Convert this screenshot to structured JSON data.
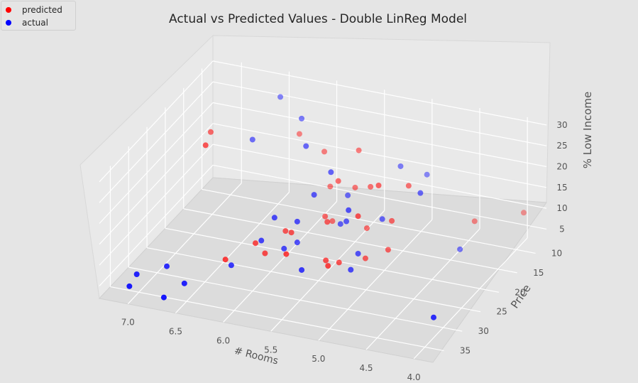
{
  "chart_data": {
    "type": "scatter",
    "title": "Actual vs Predicted Values - Double LinReg Model",
    "xlabel": "# Rooms",
    "ylabel": "Price",
    "zlabel": "% Low Income",
    "x_ticks": [
      "7.0",
      "6.5",
      "6.0",
      "5.5",
      "5.0",
      "4.5",
      "4.0"
    ],
    "y_ticks": [
      "10",
      "15",
      "20",
      "25",
      "30",
      "35"
    ],
    "z_ticks": [
      "5",
      "10",
      "15",
      "20",
      "25",
      "30"
    ],
    "legend": {
      "placement": "top-left"
    },
    "grid": true,
    "projection": "3d",
    "series": [
      {
        "name": "predicted",
        "color": "#ff0000",
        "points": [
          [
            6.8,
            22,
            26
          ],
          [
            6.9,
            18,
            25
          ],
          [
            5.5,
            14,
            23
          ],
          [
            6.2,
            12,
            22
          ],
          [
            5.9,
            13,
            20
          ],
          [
            5.1,
            19,
            21
          ],
          [
            4.9,
            16,
            19
          ],
          [
            5.6,
            17,
            18
          ],
          [
            5.3,
            16,
            17
          ],
          [
            5.2,
            22,
            16
          ],
          [
            5.5,
            15,
            15
          ],
          [
            5.8,
            14,
            13
          ],
          [
            5.0,
            18,
            12
          ],
          [
            5.6,
            20,
            11
          ],
          [
            5.7,
            18,
            10
          ],
          [
            5.9,
            22,
            9
          ],
          [
            5.8,
            26,
            8
          ],
          [
            6.0,
            21,
            8
          ],
          [
            5.3,
            17,
            8
          ],
          [
            6.2,
            24,
            7
          ],
          [
            5.7,
            16,
            7
          ],
          [
            4.4,
            11,
            8
          ],
          [
            4.0,
            8,
            9
          ],
          [
            5.0,
            19,
            6
          ],
          [
            5.4,
            25,
            6
          ],
          [
            6.4,
            27,
            5
          ],
          [
            6.1,
            24,
            5
          ],
          [
            5.5,
            23,
            5
          ],
          [
            5.4,
            22,
            4
          ],
          [
            5.2,
            20,
            4
          ]
        ]
      },
      {
        "name": "actual",
        "color": "#0000ff",
        "points": [
          [
            6.4,
            12,
            30
          ],
          [
            6.1,
            14,
            28
          ],
          [
            5.9,
            18,
            26
          ],
          [
            6.5,
            17,
            24
          ],
          [
            5.6,
            19,
            22
          ],
          [
            4.7,
            18,
            20
          ],
          [
            5.1,
            13,
            20
          ],
          [
            5.7,
            21,
            18
          ],
          [
            4.9,
            11,
            17
          ],
          [
            5.3,
            22,
            17
          ],
          [
            5.5,
            17,
            15
          ],
          [
            6.0,
            24,
            14
          ],
          [
            5.8,
            23,
            13
          ],
          [
            5.1,
            18,
            12
          ],
          [
            5.4,
            20,
            12
          ],
          [
            5.5,
            19,
            10
          ],
          [
            6.1,
            25,
            9
          ],
          [
            5.8,
            23,
            8
          ],
          [
            5.2,
            22,
            7
          ],
          [
            5.9,
            24,
            7
          ],
          [
            6.3,
            28,
            5
          ],
          [
            5.6,
            27,
            6
          ],
          [
            5.2,
            24,
            5
          ],
          [
            4.4,
            15,
            5
          ],
          [
            4.1,
            30,
            4
          ],
          [
            6.6,
            33,
            4
          ],
          [
            6.9,
            30,
            4
          ],
          [
            7.1,
            33,
            4
          ],
          [
            7.1,
            35,
            3
          ],
          [
            6.7,
            36,
            3
          ]
        ]
      }
    ]
  }
}
